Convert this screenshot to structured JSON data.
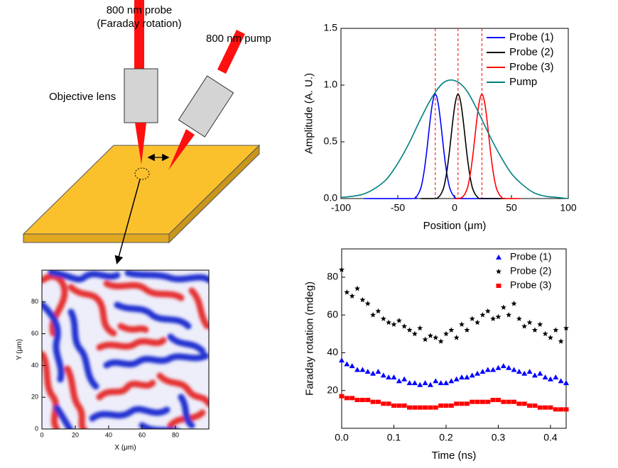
{
  "diagram": {
    "probe_label": "800 nm probe",
    "probe_sublabel": "(Faraday rotation)",
    "pump_label": "800 nm pump",
    "lens_label": "Objective lens"
  },
  "chart_data": [
    {
      "type": "line",
      "xlabel": "Position (μm)",
      "ylabel": "Amplitude (A. U.)",
      "xlim": [
        -100,
        100
      ],
      "ylim": [
        0,
        1.5
      ],
      "xticks": [
        -100,
        -50,
        0,
        50,
        100
      ],
      "yticks": [
        {
          "value": 0,
          "label": "0.0"
        },
        {
          "value": 0.5,
          "label": "0.5"
        },
        {
          "value": 1,
          "label": "1.0"
        },
        {
          "value": 1.5,
          "label": "1.5"
        }
      ],
      "legend": "upper right",
      "vlines": [
        -17,
        3,
        24
      ],
      "vline_color": "#ff0000",
      "series": [
        {
          "name": "Probe (1)",
          "color": "#0000ff",
          "x": [
            -80,
            -37,
            -34.5,
            -32,
            -29.5,
            -27,
            -24.5,
            -22,
            -19.5,
            -17,
            -14.5,
            -12,
            -9.5,
            -7,
            -4.5,
            -2,
            0.5,
            3,
            40
          ],
          "values": [
            0,
            0,
            0.01,
            0.04,
            0.1,
            0.23,
            0.42,
            0.65,
            0.84,
            0.92,
            0.84,
            0.65,
            0.42,
            0.23,
            0.1,
            0.04,
            0.01,
            0,
            0
          ]
        },
        {
          "name": "Probe (2)",
          "color": "#000000",
          "x": [
            -30,
            -17,
            -14.5,
            -12,
            -9.5,
            -7,
            -4.5,
            -2,
            0.5,
            3,
            5.5,
            8,
            10.5,
            13,
            15.5,
            18,
            20.5,
            23,
            45
          ],
          "values": [
            0,
            0,
            0.01,
            0.04,
            0.1,
            0.23,
            0.42,
            0.65,
            0.84,
            0.92,
            0.84,
            0.65,
            0.42,
            0.23,
            0.1,
            0.04,
            0.01,
            0,
            0
          ]
        },
        {
          "name": "Probe (3)",
          "color": "#ff0000",
          "x": [
            0,
            4,
            6.5,
            9,
            11.5,
            14,
            16.5,
            19,
            21.5,
            24,
            26.5,
            29,
            31.5,
            34,
            36.5,
            39,
            41.5,
            44,
            58
          ],
          "values": [
            0,
            0,
            0.01,
            0.04,
            0.1,
            0.23,
            0.42,
            0.65,
            0.84,
            0.92,
            0.84,
            0.65,
            0.42,
            0.23,
            0.1,
            0.04,
            0.01,
            0,
            0
          ]
        },
        {
          "name": "Pump",
          "color": "#008080",
          "x": [
            -100,
            -90,
            -80,
            -70,
            -60,
            -50,
            -40,
            -30,
            -20,
            -10,
            0,
            10,
            20,
            30,
            40,
            50,
            60,
            70,
            80,
            90,
            100
          ],
          "values": [
            0.01,
            0.02,
            0.04,
            0.09,
            0.17,
            0.31,
            0.49,
            0.7,
            0.89,
            1.02,
            1.04,
            0.96,
            0.78,
            0.57,
            0.38,
            0.22,
            0.12,
            0.05,
            0.02,
            0.01,
            0
          ]
        }
      ]
    },
    {
      "type": "scatter",
      "xlabel": "Time (ns)",
      "ylabel": "Faraday rotation (mdeg)",
      "xlim": [
        0,
        0.43
      ],
      "ylim": [
        0,
        95
      ],
      "xticks": [
        {
          "value": 0,
          "label": "0.0"
        },
        0.1,
        0.2,
        0.3,
        0.4
      ],
      "yticks": [
        20,
        40,
        60,
        80
      ],
      "legend": "upper right",
      "x": [
        0,
        0.01,
        0.02,
        0.03,
        0.04,
        0.05,
        0.06,
        0.07,
        0.08,
        0.09,
        0.1,
        0.11,
        0.12,
        0.13,
        0.14,
        0.15,
        0.16,
        0.17,
        0.18,
        0.19,
        0.2,
        0.21,
        0.22,
        0.23,
        0.24,
        0.25,
        0.26,
        0.27,
        0.28,
        0.29,
        0.3,
        0.31,
        0.32,
        0.33,
        0.34,
        0.35,
        0.36,
        0.37,
        0.38,
        0.39,
        0.4,
        0.41,
        0.42,
        0.43
      ],
      "series": [
        {
          "name": "Probe (1)",
          "color": "#0000ff",
          "marker": "triangle",
          "values": [
            36,
            34,
            33,
            31,
            31,
            30,
            29,
            30,
            28,
            27,
            27,
            25,
            26,
            24,
            24,
            23,
            24,
            23,
            25,
            24,
            24,
            25,
            26,
            27,
            27,
            28,
            29,
            30,
            31,
            31,
            32,
            33,
            32,
            31,
            30,
            29,
            30,
            28,
            29,
            27,
            26,
            27,
            25,
            24
          ]
        },
        {
          "name": "Probe (2)",
          "color": "#000000",
          "marker": "star",
          "values": [
            84,
            72,
            70,
            74,
            68,
            66,
            60,
            62,
            58,
            56,
            55,
            57,
            54,
            52,
            50,
            53,
            47,
            49,
            48,
            46,
            50,
            52,
            48,
            55,
            52,
            58,
            56,
            60,
            62,
            58,
            59,
            64,
            60,
            66,
            58,
            54,
            56,
            52,
            55,
            50,
            48,
            52,
            46,
            53
          ]
        },
        {
          "name": "Probe (3)",
          "color": "#ff0000",
          "marker": "square",
          "values": [
            17,
            16,
            16,
            15,
            15,
            15,
            14,
            14,
            13,
            13,
            12,
            12,
            12,
            11,
            11,
            11,
            11,
            11,
            11,
            12,
            12,
            12,
            13,
            13,
            13,
            14,
            14,
            14,
            14,
            15,
            15,
            14,
            14,
            14,
            13,
            13,
            12,
            12,
            11,
            11,
            11,
            10,
            10,
            10
          ]
        }
      ]
    },
    {
      "type": "map",
      "xlabel": "X (μm)",
      "ylabel": "Y (μm)",
      "xlim": [
        0,
        100
      ],
      "ylim": [
        0,
        100
      ],
      "xticks": [
        0,
        20,
        40,
        60,
        80
      ],
      "yticks": [
        0,
        20,
        40,
        60,
        80
      ]
    }
  ]
}
